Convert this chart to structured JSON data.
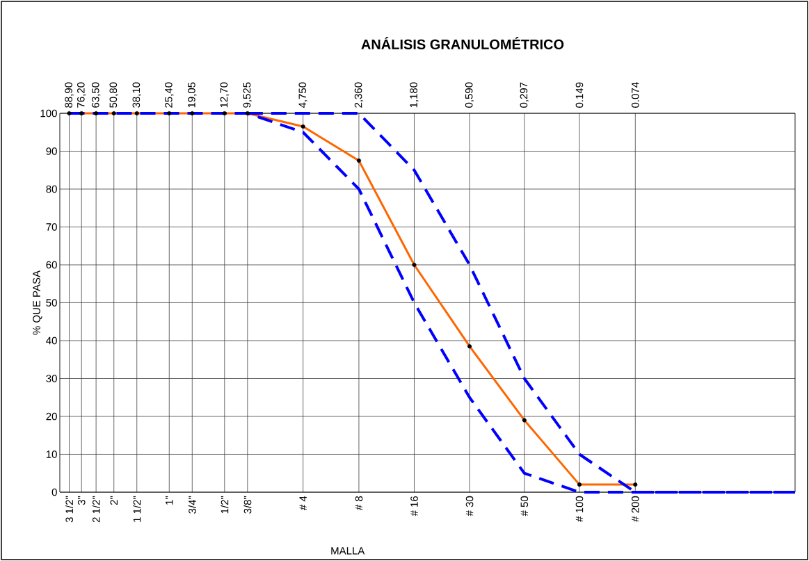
{
  "chart_data": {
    "type": "line",
    "title": "ANÁLISIS GRANULOMÉTRICO",
    "xlabel": "MALLA",
    "ylabel": "% QUE PASA",
    "log": "x",
    "grid": true,
    "xlim": [
      100,
      0.01
    ],
    "ylim": [
      0,
      100
    ],
    "yticks": [
      0,
      10,
      20,
      30,
      40,
      50,
      60,
      70,
      80,
      90,
      100
    ],
    "xticks": [
      {
        "value": 88.9,
        "label": "88,90"
      },
      {
        "value": 76.2,
        "label": "76,20"
      },
      {
        "value": 63.5,
        "label": "63,50"
      },
      {
        "value": 50.8,
        "label": "50,80"
      },
      {
        "value": 38.1,
        "label": "38,10"
      },
      {
        "value": 25.4,
        "label": "25,40"
      },
      {
        "value": 19.05,
        "label": "19,05"
      },
      {
        "value": 12.7,
        "label": "12,70"
      },
      {
        "value": 9.525,
        "label": "9,525"
      },
      {
        "value": 4.75,
        "label": "4,750"
      },
      {
        "value": 2.36,
        "label": "2,360"
      },
      {
        "value": 1.18,
        "label": "1,180"
      },
      {
        "value": 0.59,
        "label": "0,590"
      },
      {
        "value": 0.297,
        "label": "0,297"
      },
      {
        "value": 0.149,
        "label": "0.149"
      },
      {
        "value": 0.074,
        "label": "0.074"
      }
    ],
    "annotations": [
      "3 1/2\"",
      "3\"",
      "2 1/2\"",
      "2\"",
      "1 1/2\"",
      "1\"",
      "3/4\"",
      "1/2\"",
      "3/8\"",
      "# 4",
      "# 8",
      "# 16",
      "# 30",
      "# 50",
      "# 100",
      "# 200"
    ],
    "series": [
      {
        "type": "line",
        "line_style": "solid",
        "marker": "circle",
        "color": "#ff6600",
        "x": [
          88.9,
          76.2,
          63.5,
          50.8,
          38.1,
          25.4,
          19.05,
          12.7,
          9.525,
          4.75,
          2.36,
          1.18,
          0.59,
          0.297,
          0.149,
          0.074
        ],
        "values": [
          100,
          100,
          100,
          100,
          100,
          100,
          100,
          100,
          100,
          96.5,
          87.5,
          60,
          38.5,
          19,
          2,
          2
        ]
      },
      {
        "type": "line",
        "line_style": "dashed",
        "marker": "none",
        "color": "#0000ff",
        "x": [
          9.525,
          4.75,
          2.36,
          1.18,
          0.59,
          0.297,
          0.149,
          0.074,
          0.01
        ],
        "values": [
          100,
          100,
          100,
          85,
          60,
          30,
          10,
          0,
          0
        ]
      },
      {
        "type": "line",
        "line_style": "dashed",
        "marker": "none",
        "color": "#0000ff",
        "x": [
          88.9,
          76.2,
          63.5,
          50.8,
          38.1,
          25.4,
          19.05,
          12.7,
          9.525,
          4.75,
          2.36,
          1.18,
          0.59,
          0.297,
          0.149,
          0.074,
          0.01
        ],
        "values": [
          100,
          100,
          100,
          100,
          100,
          100,
          100,
          100,
          100,
          95,
          80,
          50,
          25,
          5,
          0,
          0,
          0
        ]
      }
    ]
  }
}
